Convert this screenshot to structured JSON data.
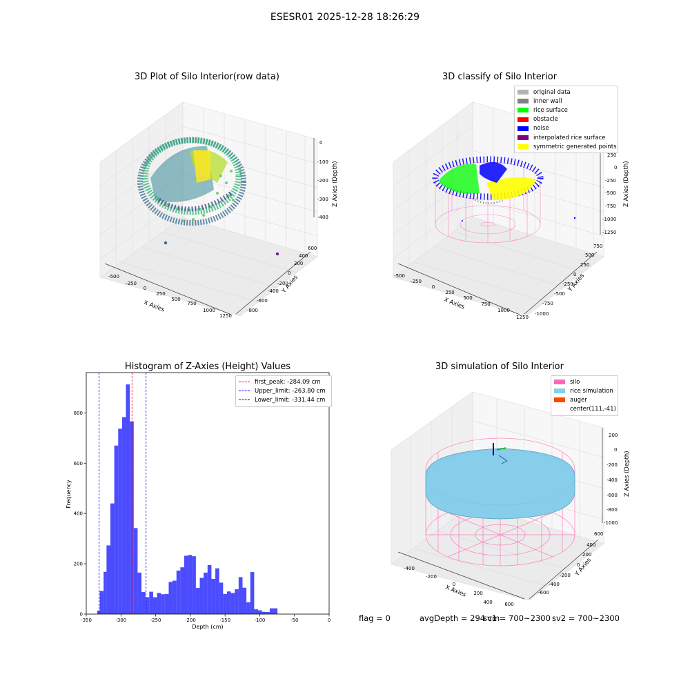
{
  "suptitle": "ESESR01 2025-12-28 18:26:29",
  "panels": {
    "raw": {
      "title": "3D Plot of Silo Interior(row data)",
      "xlabel": "X Axies",
      "ylabel": "Y Axies",
      "zlabel": "Z Axies (Depth)",
      "xticks": [
        "-500",
        "-250",
        "0",
        "250",
        "500",
        "750",
        "1000",
        "1250"
      ],
      "yticks": [
        "-800",
        "-600",
        "-400",
        "-200",
        "0",
        "200",
        "400",
        "600"
      ],
      "zticks": [
        "0",
        "-100",
        "-200",
        "-300",
        "-400"
      ]
    },
    "classify": {
      "title": "3D classify of Silo Interior",
      "xlabel": "X Axies",
      "ylabel": "Y Axies",
      "zlabel": "Z Axies (Depth)",
      "xticks": [
        "-500",
        "-250",
        "0",
        "250",
        "500",
        "750",
        "1000",
        "1250"
      ],
      "yticks": [
        "-1000",
        "-750",
        "-500",
        "-250",
        "0",
        "250",
        "500",
        "750"
      ],
      "zticks": [
        "500",
        "250",
        "0",
        "-250",
        "-500",
        "-750",
        "-1000",
        "-1250"
      ],
      "legend": [
        {
          "label": "original data",
          "color": "#b3b3b3"
        },
        {
          "label": "inner wall",
          "color": "#808080"
        },
        {
          "label": "rice surface",
          "color": "#00ff00"
        },
        {
          "label": "obstacle",
          "color": "#ff0000"
        },
        {
          "label": "noise",
          "color": "#0000ff"
        },
        {
          "label": "interpolated rice surface",
          "color": "#800080"
        },
        {
          "label": "symmetric generated points",
          "color": "#ffff00"
        }
      ]
    },
    "simulation": {
      "title": "3D simulation of Silo Interior",
      "xlabel": "X Axies",
      "ylabel": "Y Axies",
      "zlabel": "Z Axies (Depth)",
      "xticks": [
        "-400",
        "-200",
        "0",
        "200",
        "400",
        "600"
      ],
      "yticks": [
        "-600",
        "-400",
        "-200",
        "0",
        "200",
        "400",
        "600"
      ],
      "zticks": [
        "200",
        "0",
        "-200",
        "-400",
        "-600",
        "-800",
        "-1000"
      ],
      "legend": [
        {
          "label": "silo",
          "color": "#ff69b4"
        },
        {
          "label": "rice simulation",
          "color": "#87ceeb"
        },
        {
          "label": "auger",
          "color": "#ff4500"
        },
        {
          "label": "center(111,-41)",
          "color": ""
        }
      ]
    }
  },
  "status": {
    "flag": "flag = 0",
    "avg_depth": "avgDepth = 294 cm",
    "sv1": "sv1 = 700~2300",
    "sv2": "sv2 = 700~2300"
  },
  "chart_data": [
    {
      "type": "histogram",
      "title": "Histogram of Z-Axies (Height) Values",
      "xlabel": "Depth (cm)",
      "ylabel": "Frequency",
      "xlim": [
        -350,
        0
      ],
      "ylim": [
        0,
        960
      ],
      "xticks": [
        -350,
        -300,
        -250,
        -200,
        -150,
        -100,
        -50,
        0
      ],
      "yticks": [
        0,
        200,
        400,
        600,
        800
      ],
      "bar_color": "#0000ff",
      "bins": [
        {
          "x0": -334.1,
          "x1": -330.6,
          "count": 14
        },
        {
          "x0": -330.6,
          "x1": -325.0,
          "count": 92
        },
        {
          "x0": -325.0,
          "x1": -320.8,
          "count": 168
        },
        {
          "x0": -320.8,
          "x1": -315.2,
          "count": 273
        },
        {
          "x0": -315.2,
          "x1": -309.6,
          "count": 440
        },
        {
          "x0": -309.6,
          "x1": -304.0,
          "count": 670
        },
        {
          "x0": -304.0,
          "x1": -298.4,
          "count": 737
        },
        {
          "x0": -298.4,
          "x1": -292.8,
          "count": 783
        },
        {
          "x0": -292.8,
          "x1": -287.2,
          "count": 913
        },
        {
          "x0": -287.2,
          "x1": -281.6,
          "count": 766
        },
        {
          "x0": -281.6,
          "x1": -276.0,
          "count": 342
        },
        {
          "x0": -276.0,
          "x1": -270.4,
          "count": 165
        },
        {
          "x0": -270.4,
          "x1": -264.8,
          "count": 88
        },
        {
          "x0": -264.8,
          "x1": -259.2,
          "count": 67
        },
        {
          "x0": -259.2,
          "x1": -253.6,
          "count": 89
        },
        {
          "x0": -253.6,
          "x1": -248.0,
          "count": 67
        },
        {
          "x0": -248.0,
          "x1": -242.4,
          "count": 84
        },
        {
          "x0": -242.4,
          "x1": -236.8,
          "count": 79
        },
        {
          "x0": -236.8,
          "x1": -231.2,
          "count": 80
        },
        {
          "x0": -231.2,
          "x1": -225.6,
          "count": 128
        },
        {
          "x0": -225.6,
          "x1": -220.0,
          "count": 133
        },
        {
          "x0": -220.0,
          "x1": -214.4,
          "count": 173
        },
        {
          "x0": -214.4,
          "x1": -208.8,
          "count": 186
        },
        {
          "x0": -208.8,
          "x1": -203.2,
          "count": 232
        },
        {
          "x0": -203.2,
          "x1": -197.6,
          "count": 235
        },
        {
          "x0": -197.6,
          "x1": -192.0,
          "count": 230
        },
        {
          "x0": -192.0,
          "x1": -186.4,
          "count": 104
        },
        {
          "x0": -186.4,
          "x1": -180.8,
          "count": 144
        },
        {
          "x0": -180.8,
          "x1": -175.2,
          "count": 165
        },
        {
          "x0": -175.2,
          "x1": -169.6,
          "count": 195
        },
        {
          "x0": -169.6,
          "x1": -164.0,
          "count": 140
        },
        {
          "x0": -164.0,
          "x1": -158.4,
          "count": 182
        },
        {
          "x0": -158.4,
          "x1": -152.8,
          "count": 125
        },
        {
          "x0": -152.8,
          "x1": -147.2,
          "count": 80
        },
        {
          "x0": -147.2,
          "x1": -141.6,
          "count": 90
        },
        {
          "x0": -141.6,
          "x1": -136.0,
          "count": 84
        },
        {
          "x0": -136.0,
          "x1": -130.4,
          "count": 99
        },
        {
          "x0": -130.4,
          "x1": -124.8,
          "count": 147
        },
        {
          "x0": -124.8,
          "x1": -119.2,
          "count": 105
        },
        {
          "x0": -119.2,
          "x1": -113.6,
          "count": 47
        },
        {
          "x0": -113.6,
          "x1": -108.0,
          "count": 167
        },
        {
          "x0": -108.0,
          "x1": -102.4,
          "count": 19
        },
        {
          "x0": -102.4,
          "x1": -96.8,
          "count": 15
        },
        {
          "x0": -96.8,
          "x1": -91.2,
          "count": 9
        },
        {
          "x0": -91.2,
          "x1": -85.6,
          "count": 8
        },
        {
          "x0": -85.6,
          "x1": -80.0,
          "count": 23
        },
        {
          "x0": -80.0,
          "x1": -74.4,
          "count": 23
        }
      ],
      "vlines": [
        {
          "label": "first_peak: -284.09 cm",
          "x": -284.09,
          "color": "#ff0000"
        },
        {
          "label": "Upper_limit: -263.80 cm",
          "x": -263.8,
          "color": "#0000ff"
        },
        {
          "label": "Lower_limit: -331.44 cm",
          "x": -331.44,
          "color": "#0000ff"
        }
      ],
      "legend_position": "upper right"
    }
  ]
}
